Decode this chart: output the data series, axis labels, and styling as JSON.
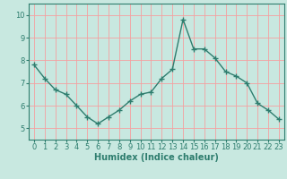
{
  "x": [
    0,
    1,
    2,
    3,
    4,
    5,
    6,
    7,
    8,
    9,
    10,
    11,
    12,
    13,
    14,
    15,
    16,
    17,
    18,
    19,
    20,
    21,
    22,
    23
  ],
  "y": [
    7.8,
    7.2,
    6.7,
    6.5,
    6.0,
    5.5,
    5.2,
    5.5,
    5.8,
    6.2,
    6.5,
    6.6,
    7.2,
    7.6,
    9.8,
    8.5,
    8.5,
    8.1,
    7.5,
    7.3,
    7.0,
    6.1,
    5.8,
    5.4
  ],
  "line_color": "#2e7d6e",
  "marker": "+",
  "marker_size": 4,
  "marker_color": "#2e7d6e",
  "bg_color": "#c8e8e0",
  "grid_color": "#f5a0a0",
  "axis_color": "#2e7d6e",
  "xlabel": "Humidex (Indice chaleur)",
  "xlabel_fontsize": 7,
  "xlim": [
    -0.5,
    23.5
  ],
  "ylim": [
    4.5,
    10.5
  ],
  "yticks": [
    5,
    6,
    7,
    8,
    9,
    10
  ],
  "xticks": [
    0,
    1,
    2,
    3,
    4,
    5,
    6,
    7,
    8,
    9,
    10,
    11,
    12,
    13,
    14,
    15,
    16,
    17,
    18,
    19,
    20,
    21,
    22,
    23
  ],
  "tick_fontsize": 6,
  "line_width": 1.0
}
